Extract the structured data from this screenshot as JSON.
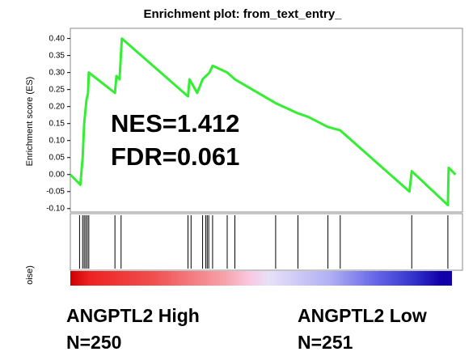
{
  "chart_data": {
    "type": "line",
    "title": "Enrichment plot: from_text_entry_",
    "ylabel": "Enrichment score (ES)",
    "x": [
      0,
      13,
      16,
      18,
      21,
      23,
      24,
      58,
      60,
      64,
      67,
      153,
      155,
      165,
      172,
      181,
      185,
      204,
      214,
      267,
      296,
      309,
      335,
      351,
      441,
      444,
      491,
      492,
      501
    ],
    "values": [
      0.0,
      -0.03,
      0.05,
      0.15,
      0.22,
      0.24,
      0.3,
      0.24,
      0.29,
      0.28,
      0.4,
      0.23,
      0.28,
      0.24,
      0.28,
      0.3,
      0.32,
      0.3,
      0.28,
      0.21,
      0.18,
      0.17,
      0.14,
      0.13,
      -0.05,
      0.01,
      -0.09,
      0.02,
      0.0
    ],
    "color": "#33ee33",
    "xlim": [
      0,
      510
    ],
    "ylim": [
      -0.11,
      0.43
    ],
    "yticks": [
      {
        "value": 0.4,
        "label": "0.40"
      },
      {
        "value": 0.35,
        "label": "0.35"
      },
      {
        "value": 0.3,
        "label": "0.30"
      },
      {
        "value": 0.25,
        "label": "0.25"
      },
      {
        "value": 0.2,
        "label": "0.20"
      },
      {
        "value": 0.15,
        "label": "0.15"
      },
      {
        "value": 0.1,
        "label": "0.10"
      },
      {
        "value": 0.05,
        "label": "0.05"
      },
      {
        "value": 0,
        "label": "0.00"
      },
      {
        "value": -0.05,
        "label": "-0.05"
      },
      {
        "value": -0.1,
        "label": "-0.10"
      }
    ],
    "hits": [
      12,
      16,
      18,
      20,
      22,
      24,
      58,
      66,
      153,
      157,
      172,
      176,
      178,
      180,
      185,
      204,
      214,
      267,
      296,
      335,
      351,
      444,
      491
    ],
    "hits_color": "#000000",
    "metric_label": "oise)",
    "annotations": [
      "NES=1.412",
      "FDR=0.061"
    ],
    "groups": [
      {
        "label": "ANGPTL2 High",
        "n": "N=250"
      },
      {
        "label": "ANGPTL2 Low",
        "n": "N=251"
      }
    ]
  }
}
